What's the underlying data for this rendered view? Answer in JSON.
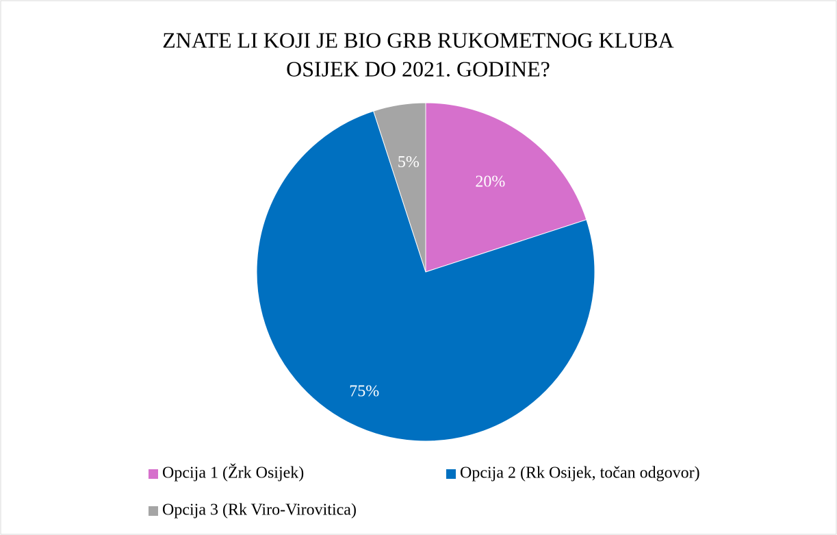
{
  "chart_data": {
    "type": "pie",
    "title": [
      "ZNATE LI KOJI JE BIO GRB RUKOMETNOG KLUBA",
      "OSIJEK DO 2021. GODINE?"
    ],
    "series": [
      {
        "name": "Opcija 1 (Žrk Osijek)",
        "color": "#d670cc"
      },
      {
        "name": "Opcija 2 (Rk Osijek, točan odgovor)",
        "color": "#0070c0"
      },
      {
        "name": "Opcija 3 (Rk Viro-Virovitica)",
        "color": "#a5a5a5"
      }
    ],
    "values": [
      20,
      75,
      5
    ],
    "value_labels": [
      "20%",
      "75%",
      "5%"
    ],
    "legend": "bottom"
  }
}
